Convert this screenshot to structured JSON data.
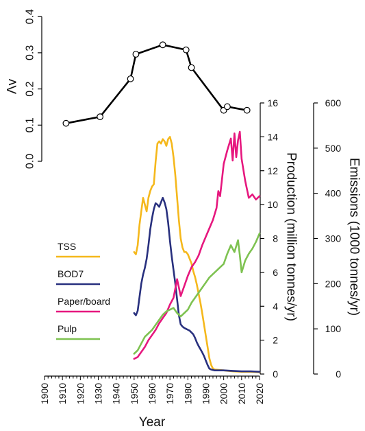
{
  "chart_data": [
    {
      "type": "line",
      "ylabel": "Λv",
      "ylim": [
        -0.05,
        0.4
      ],
      "yticks": [
        "0.0",
        "0.1",
        "0.2",
        "0.3",
        "0.4"
      ],
      "series": [
        {
          "x": [
            1912,
            1931,
            1948,
            1951,
            1966,
            1979,
            1982,
            2000,
            2002,
            2013
          ],
          "values": [
            0.105,
            0.123,
            0.228,
            0.296,
            0.322,
            0.308,
            0.259,
            0.141,
            0.151,
            0.141
          ],
          "color": "#000000"
        }
      ]
    },
    {
      "type": "line",
      "xlabel": "Year",
      "xlim": [
        1900,
        2020
      ],
      "xticks": [
        "1900",
        "1910",
        "1920",
        "1930",
        "1940",
        "1950",
        "1960",
        "1970",
        "1980",
        "1990",
        "2000",
        "2010",
        "2020"
      ],
      "ylabel": "Production (million tonnes/yr)",
      "ylim": [
        0,
        16
      ],
      "yticks": [
        "0",
        "2",
        "4",
        "6",
        "8",
        "10",
        "12",
        "14",
        "16"
      ],
      "y2label": "Emissions (1000 tonnes/yr)",
      "y2lim": [
        0,
        600
      ],
      "y2ticks": [
        "0",
        "100",
        "200",
        "300",
        "400",
        "500",
        "600"
      ],
      "series": [
        {
          "name": "TSS",
          "axis": "emissions",
          "color": "#f5b81c",
          "x": [
            1950,
            1951,
            1952,
            1953,
            1954,
            1955,
            1956,
            1957,
            1958,
            1959,
            1960,
            1961,
            1962,
            1963,
            1964,
            1965,
            1966,
            1967,
            1968,
            1969,
            1970,
            1971,
            1972,
            1973,
            1974,
            1975,
            1976,
            1977,
            1978,
            1979,
            1980,
            1981,
            1982,
            1983,
            1984,
            1985,
            1986,
            1987,
            1988,
            1989,
            1990,
            1991,
            1992,
            1993,
            1994,
            1995,
            2000,
            2005,
            2010,
            2015,
            2020
          ],
          "values": [
            270,
            265,
            285,
            330,
            360,
            390,
            375,
            360,
            390,
            405,
            415,
            420,
            470,
            510,
            515,
            510,
            520,
            515,
            505,
            520,
            525,
            510,
            480,
            440,
            390,
            340,
            300,
            280,
            270,
            270,
            265,
            255,
            245,
            228,
            215,
            198,
            178,
            158,
            135,
            110,
            85,
            60,
            35,
            20,
            12,
            10,
            8,
            6,
            5,
            5,
            4
          ]
        },
        {
          "name": "BOD7",
          "axis": "emissions",
          "color": "#28307e",
          "x": [
            1950,
            1951,
            1952,
            1953,
            1954,
            1955,
            1956,
            1957,
            1958,
            1959,
            1960,
            1961,
            1962,
            1963,
            1964,
            1965,
            1966,
            1967,
            1968,
            1969,
            1970,
            1971,
            1972,
            1973,
            1974,
            1975,
            1976,
            1977,
            1978,
            1979,
            1980,
            1981,
            1982,
            1983,
            1984,
            1985,
            1986,
            1987,
            1988,
            1989,
            1990,
            1991,
            1992,
            1993,
            1994,
            1995,
            2000,
            2005,
            2010,
            2015,
            2020
          ],
          "values": [
            135,
            130,
            140,
            170,
            200,
            220,
            235,
            255,
            285,
            320,
            345,
            365,
            378,
            375,
            370,
            380,
            390,
            380,
            365,
            335,
            295,
            260,
            230,
            200,
            165,
            130,
            110,
            105,
            102,
            100,
            98,
            96,
            92,
            88,
            80,
            70,
            62,
            55,
            48,
            40,
            30,
            20,
            12,
            10,
            9,
            8,
            8,
            7,
            6,
            6,
            5
          ]
        },
        {
          "name": "Paper/board",
          "axis": "production",
          "color": "#e6177e",
          "x": [
            1950,
            1952,
            1954,
            1956,
            1958,
            1960,
            1962,
            1964,
            1966,
            1968,
            1970,
            1972,
            1974,
            1976,
            1978,
            1980,
            1982,
            1984,
            1986,
            1988,
            1990,
            1992,
            1994,
            1996,
            1997,
            1998,
            2000,
            2002,
            2004,
            2005,
            2006,
            2007,
            2008,
            2009,
            2010,
            2012,
            2014,
            2016,
            2018,
            2020
          ],
          "values": [
            0.9,
            1.0,
            1.3,
            1.6,
            2.0,
            2.3,
            2.6,
            3.0,
            3.3,
            3.6,
            4.1,
            4.5,
            5.6,
            4.6,
            5.2,
            5.8,
            6.3,
            6.6,
            7.0,
            7.6,
            8.1,
            8.6,
            9.1,
            9.8,
            10.8,
            10.5,
            12.4,
            13.2,
            13.9,
            12.6,
            14.2,
            12.8,
            13.8,
            14.3,
            12.7,
            11.4,
            10.4,
            10.6,
            10.3,
            10.5
          ]
        },
        {
          "name": "Pulp",
          "axis": "production",
          "color": "#7ec251",
          "x": [
            1950,
            1952,
            1954,
            1956,
            1958,
            1960,
            1962,
            1964,
            1966,
            1968,
            1970,
            1972,
            1974,
            1976,
            1978,
            1980,
            1982,
            1984,
            1986,
            1988,
            1990,
            1992,
            1994,
            1996,
            1998,
            2000,
            2002,
            2004,
            2006,
            2008,
            2009,
            2010,
            2012,
            2014,
            2016,
            2018,
            2020
          ],
          "values": [
            1.2,
            1.4,
            1.8,
            2.2,
            2.4,
            2.6,
            2.9,
            3.2,
            3.5,
            3.7,
            3.8,
            3.9,
            3.6,
            3.4,
            3.6,
            3.8,
            4.2,
            4.5,
            4.8,
            5.1,
            5.4,
            5.7,
            5.9,
            6.1,
            6.3,
            6.5,
            7.1,
            7.6,
            7.2,
            7.9,
            7.0,
            6.0,
            6.7,
            7.1,
            7.4,
            7.8,
            8.3
          ]
        }
      ]
    }
  ]
}
